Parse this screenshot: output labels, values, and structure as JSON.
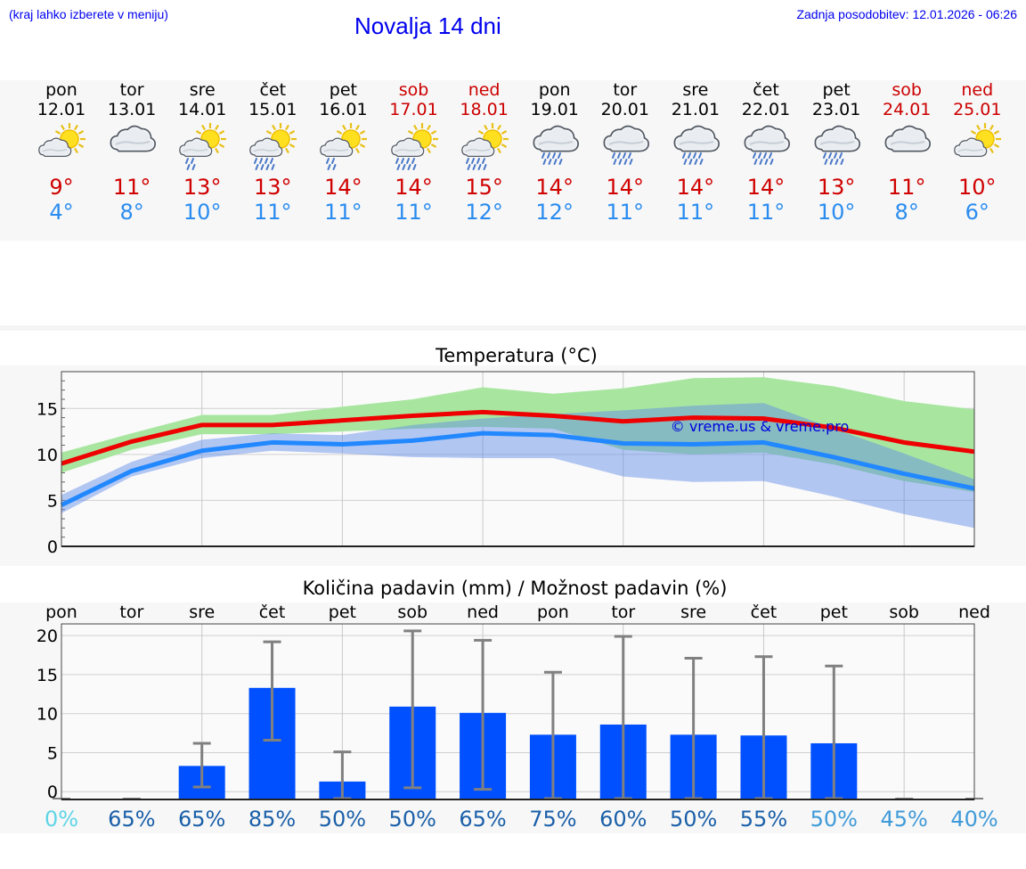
{
  "header": {
    "hint": "(kraj lahko izberete v meniju)",
    "title": "Novalja 14 dni",
    "updated": "Zadnja posodobitev: 12.01.2026 - 06:26"
  },
  "days": [
    {
      "name": "pon",
      "date": "12.01",
      "weekend": false,
      "icon": "sun-cloud-icon",
      "max": "9°",
      "min": "4°"
    },
    {
      "name": "tor",
      "date": "13.01",
      "weekend": false,
      "icon": "cloud-icon",
      "max": "11°",
      "min": "8°"
    },
    {
      "name": "sre",
      "date": "14.01",
      "weekend": false,
      "icon": "sun-cloud-light-rain-icon",
      "max": "13°",
      "min": "10°"
    },
    {
      "name": "čet",
      "date": "15.01",
      "weekend": false,
      "icon": "sun-cloud-rain-icon",
      "max": "13°",
      "min": "11°"
    },
    {
      "name": "pet",
      "date": "16.01",
      "weekend": false,
      "icon": "sun-cloud-light-rain-icon",
      "max": "14°",
      "min": "11°"
    },
    {
      "name": "sob",
      "date": "17.01",
      "weekend": true,
      "icon": "sun-cloud-rain-icon",
      "max": "14°",
      "min": "11°"
    },
    {
      "name": "ned",
      "date": "18.01",
      "weekend": true,
      "icon": "sun-cloud-rain-icon",
      "max": "15°",
      "min": "12°"
    },
    {
      "name": "pon",
      "date": "19.01",
      "weekend": false,
      "icon": "cloud-rain-icon",
      "max": "14°",
      "min": "12°"
    },
    {
      "name": "tor",
      "date": "20.01",
      "weekend": false,
      "icon": "cloud-rain-icon",
      "max": "14°",
      "min": "11°"
    },
    {
      "name": "sre",
      "date": "21.01",
      "weekend": false,
      "icon": "cloud-rain-icon",
      "max": "14°",
      "min": "11°"
    },
    {
      "name": "čet",
      "date": "22.01",
      "weekend": false,
      "icon": "cloud-rain-icon",
      "max": "14°",
      "min": "11°"
    },
    {
      "name": "pet",
      "date": "23.01",
      "weekend": false,
      "icon": "cloud-rain-icon",
      "max": "13°",
      "min": "10°"
    },
    {
      "name": "sob",
      "date": "24.01",
      "weekend": true,
      "icon": "cloud-icon",
      "max": "11°",
      "min": "8°"
    },
    {
      "name": "ned",
      "date": "25.01",
      "weekend": true,
      "icon": "sun-cloud-icon",
      "max": "10°",
      "min": "6°"
    }
  ],
  "colors": {
    "max": "#ee0000",
    "min": "#2288ff",
    "max_band": "#a8e6a0",
    "min_band": "#a9c2f5",
    "overlap_band": "#7cc4a4",
    "bar": "#0050ff",
    "errbar": "#808080",
    "weekend": "#cc0000",
    "watermark": "#0000dd"
  },
  "chart_data": [
    {
      "type": "line",
      "title": "Temperatura (°C)",
      "ylim": [
        0,
        19
      ],
      "yticks": [
        0,
        5,
        10,
        15
      ],
      "x": [
        0,
        1,
        2,
        3,
        4,
        5,
        6,
        7,
        8,
        9,
        10,
        11,
        12,
        13
      ],
      "watermark": "© vreme.us & vreme.pro",
      "series": [
        {
          "name": "max",
          "values": [
            9,
            11.4,
            13.2,
            13.2,
            13.7,
            14.2,
            14.6,
            14.2,
            13.6,
            14,
            13.9,
            12.9,
            11.3,
            10.3
          ]
        },
        {
          "name": "min",
          "values": [
            4.5,
            8.2,
            10.4,
            11.3,
            11.1,
            11.5,
            12.3,
            12.1,
            11.2,
            11.1,
            11.3,
            9.7,
            7.9,
            6.3
          ]
        }
      ],
      "max_band": {
        "upper": [
          10.2,
          12.3,
          14.3,
          14.3,
          15.2,
          16,
          17.3,
          16.6,
          17.2,
          18.3,
          18.4,
          17.4,
          15.8,
          14.9
        ],
        "lower": [
          8,
          10.5,
          12.2,
          12.2,
          12.5,
          12.8,
          13,
          12.8,
          10.5,
          10,
          10.2,
          8.9,
          7.1,
          5.9
        ]
      },
      "min_band": {
        "upper": [
          5.6,
          9.2,
          11.6,
          12.3,
          12.1,
          13.2,
          13.9,
          14.4,
          14.8,
          15.3,
          15.6,
          12.8,
          10.1,
          7.3
        ],
        "lower": [
          3.6,
          7.6,
          9.6,
          10.4,
          10.1,
          9.7,
          9.6,
          9.6,
          7.6,
          7,
          7.1,
          5.4,
          3.5,
          2
        ]
      }
    },
    {
      "type": "bar",
      "title": "Količina padavin (mm) / Možnost padavin (%)",
      "categories": [
        "pon",
        "tor",
        "sre",
        "čet",
        "pet",
        "sob",
        "ned",
        "pon",
        "tor",
        "sre",
        "čet",
        "pet",
        "sob",
        "ned"
      ],
      "ylim": [
        -1,
        21.5
      ],
      "yticks": [
        0,
        5,
        10,
        15,
        20
      ],
      "values": [
        0,
        0,
        3.3,
        13.3,
        1.3,
        10.9,
        10.1,
        7.3,
        8.6,
        7.3,
        7.2,
        6.2,
        0,
        0
      ],
      "error_low": [
        0,
        0,
        0.6,
        6.6,
        0,
        0.5,
        0.3,
        0,
        0,
        0,
        0,
        0,
        0,
        0
      ],
      "error_high": [
        0,
        0,
        6.2,
        19.2,
        5.1,
        20.6,
        19.4,
        15.3,
        19.9,
        17.1,
        17.3,
        16.1,
        0,
        0
      ],
      "probability": [
        "0%",
        "65%",
        "65%",
        "85%",
        "50%",
        "50%",
        "65%",
        "75%",
        "60%",
        "50%",
        "55%",
        "50%",
        "45%",
        "40%"
      ],
      "probability_colors": [
        "#5dd5e6",
        "#1a5fa8",
        "#1a5fa8",
        "#1a5fa8",
        "#1a5fa8",
        "#1a5fa8",
        "#1a5fa8",
        "#1a5fa8",
        "#1a5fa8",
        "#1a5fa8",
        "#1a5fa8",
        "#3f9ad8",
        "#3f9ad8",
        "#3f9ad8"
      ]
    }
  ]
}
